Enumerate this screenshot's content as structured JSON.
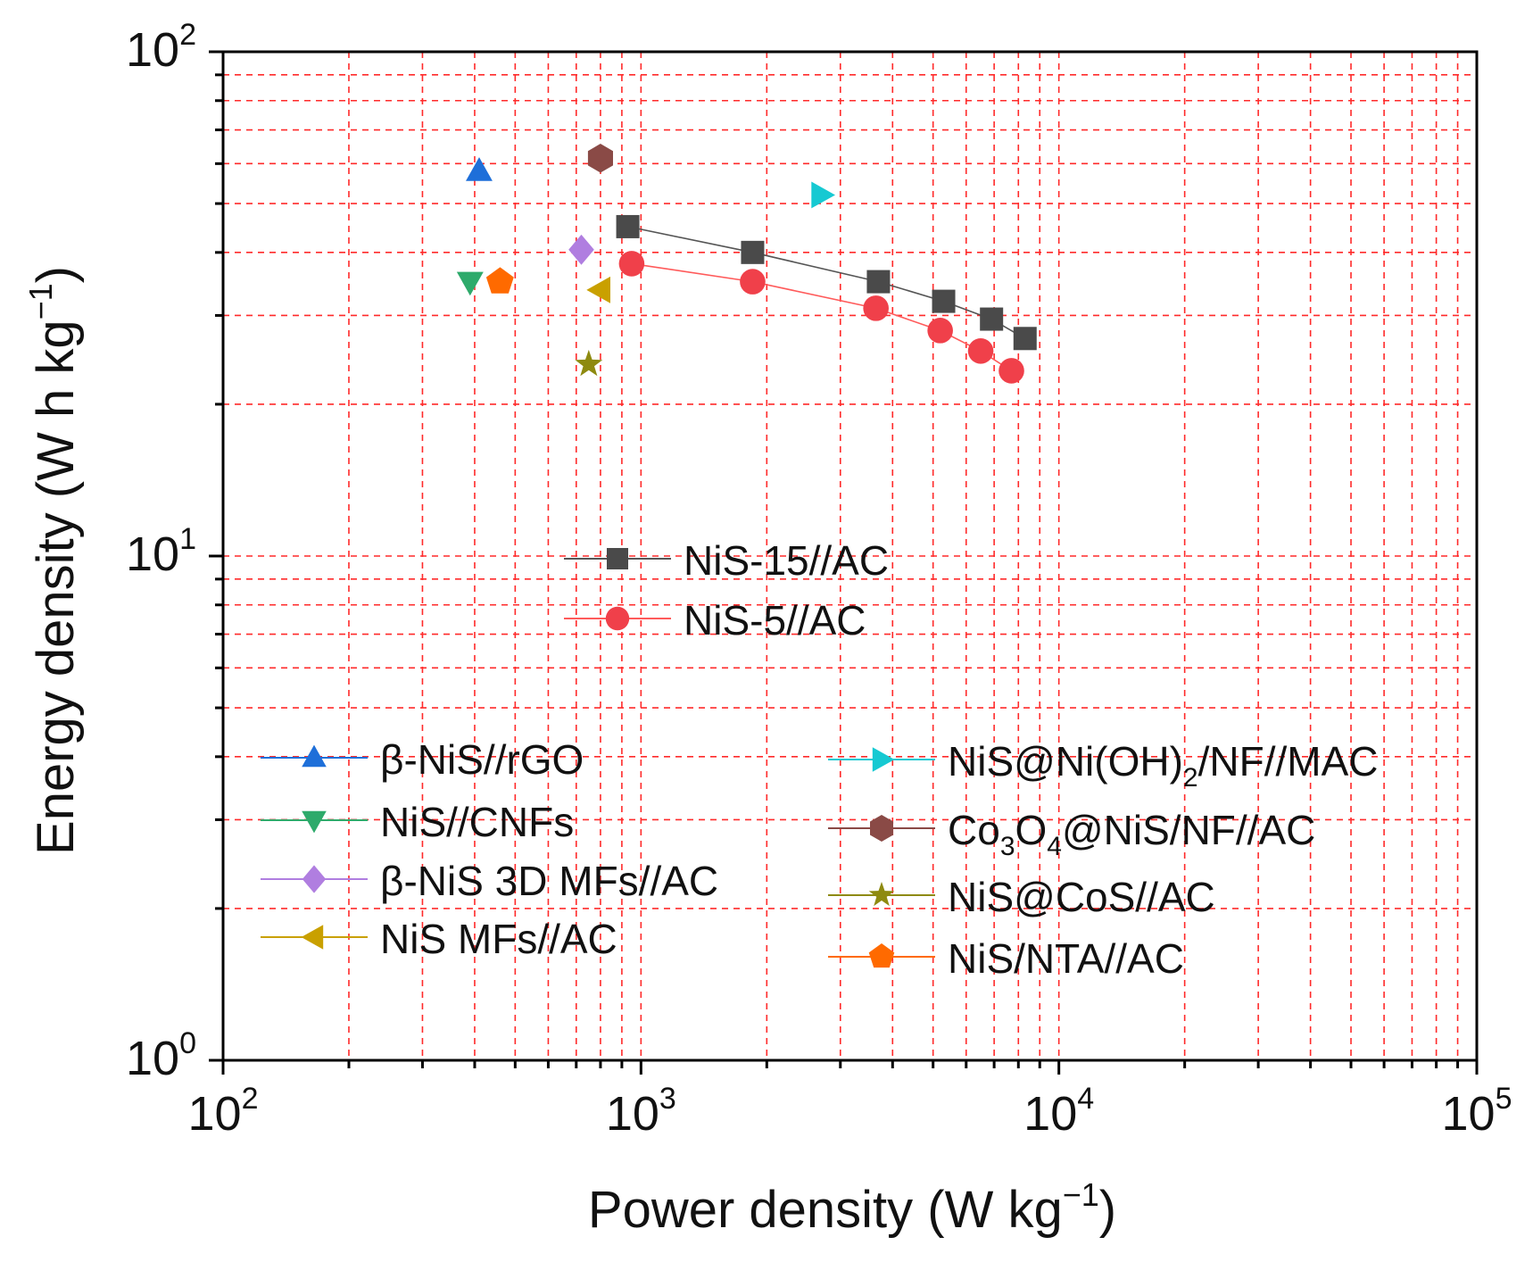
{
  "chart_data": {
    "type": "scatter",
    "xlabel": "Power density (W kg",
    "xlabel_sup": "−1",
    "xlabel_end": ")",
    "ylabel": "Energy density (W h kg",
    "ylabel_sup": "−1",
    "ylabel_end": ")",
    "xscale": "log",
    "yscale": "log",
    "xlim": [
      100,
      100000
    ],
    "ylim": [
      1,
      100
    ],
    "grid": true,
    "grid_color": "#ff2a2a",
    "x_ticks": [
      {
        "base": "10",
        "exp": "2",
        "value": 100
      },
      {
        "base": "10",
        "exp": "3",
        "value": 1000
      },
      {
        "base": "10",
        "exp": "4",
        "value": 10000
      },
      {
        "base": "10",
        "exp": "5",
        "value": 100000
      }
    ],
    "y_ticks": [
      {
        "base": "10",
        "exp": "0",
        "value": 1
      },
      {
        "base": "10",
        "exp": "1",
        "value": 10
      },
      {
        "base": "10",
        "exp": "2",
        "value": 100
      }
    ],
    "series": [
      {
        "name": "NiS-15//AC",
        "marker": "square",
        "color": "#4a4a4a",
        "line_color": "#555555",
        "line": true,
        "x": [
          930,
          1850,
          3700,
          5300,
          6900,
          8300
        ],
        "y": [
          45,
          40,
          35,
          32,
          29.5,
          27
        ]
      },
      {
        "name": "NiS-5//AC",
        "marker": "circle",
        "color": "#f0404a",
        "line_color": "#ff5a5a",
        "line": true,
        "x": [
          950,
          1850,
          3650,
          5200,
          6500,
          7700
        ],
        "y": [
          38,
          35,
          31,
          28,
          25.5,
          23.3
        ]
      },
      {
        "name": "β-NiS//rGO",
        "marker": "triangle-up",
        "color": "#1e6fd9",
        "line_color": "#1e6fd9",
        "line": false,
        "x": [
          410
        ],
        "y": [
          58
        ]
      },
      {
        "name": "NiS//CNFs",
        "marker": "triangle-down",
        "color": "#2eaa6b",
        "line_color": "#2eaa6b",
        "line": false,
        "x": [
          390
        ],
        "y": [
          35
        ]
      },
      {
        "name": "β-NiS 3D MFs//AC",
        "marker": "diamond",
        "color": "#b07ee0",
        "line_color": "#b07ee0",
        "line": false,
        "x": [
          720
        ],
        "y": [
          40.5
        ]
      },
      {
        "name": "NiS MFs//AC",
        "marker": "triangle-left",
        "color": "#c9a000",
        "line_color": "#c9a000",
        "line": false,
        "x": [
          800
        ],
        "y": [
          33.7
        ]
      },
      {
        "name": "NiS@Ni(OH)",
        "name_sub": "2",
        "name_end": "/NF//MAC",
        "marker": "triangle-right",
        "color": "#16c9d2",
        "line_color": "#16c9d2",
        "line": false,
        "x": [
          2700
        ],
        "y": [
          52
        ]
      },
      {
        "name": "Co",
        "name_sub": "3",
        "name_mid": "O",
        "name_sub2": "4",
        "name_end": "@NiS/NF//AC",
        "marker": "hexagon",
        "color": "#8a4a46",
        "line_color": "#8a4a46",
        "line": false,
        "x": [
          800
        ],
        "y": [
          61.5
        ]
      },
      {
        "name": "NiS@CoS//AC",
        "marker": "star",
        "color": "#8e8a10",
        "line_color": "#8e8a10",
        "line": false,
        "x": [
          750
        ],
        "y": [
          24
        ]
      },
      {
        "name": "NiS/NTA//AC",
        "marker": "pentagon",
        "color": "#ff6a00",
        "line_color": "#ff6a00",
        "line": false,
        "x": [
          460
        ],
        "y": [
          35
        ]
      }
    ],
    "legend_placement": [
      "center",
      "lower-left",
      "lower-right"
    ]
  }
}
